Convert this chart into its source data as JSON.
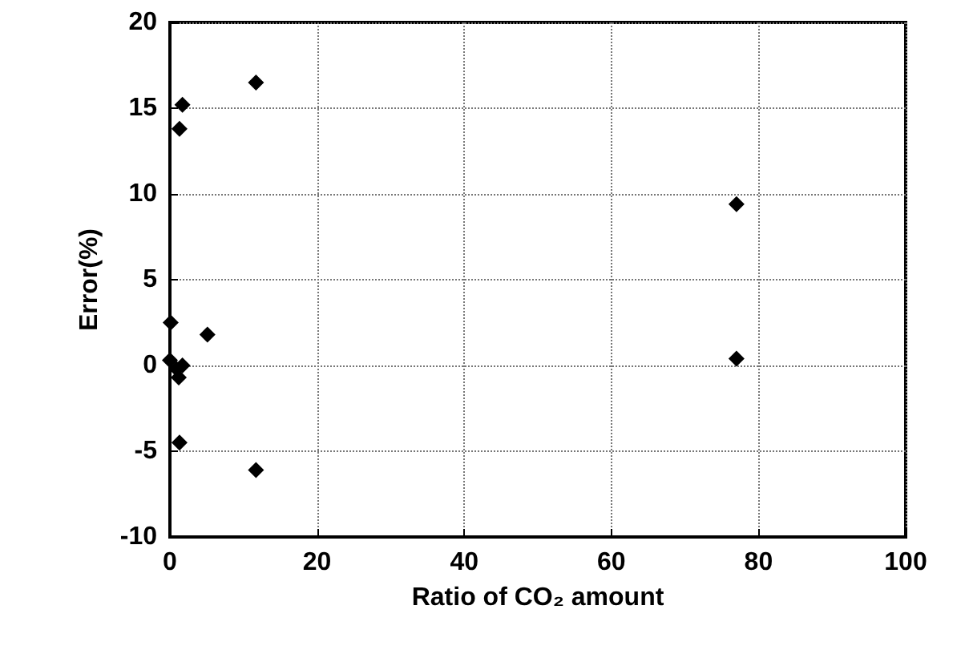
{
  "chart_data": {
    "type": "scatter",
    "xlabel": "Ratio of CO₂ amount",
    "ylabel": "Error(%)",
    "series": [
      {
        "color": "#000000",
        "x": [
          11.7,
          1.7,
          1.3,
          0.1,
          5.1,
          0,
          1.7,
          0.9,
          1.2,
          1.3,
          11.7,
          77,
          77
        ],
        "values": [
          16.5,
          15.2,
          13.8,
          2.5,
          1.8,
          0.3,
          0,
          -0.2,
          -0.7,
          -4.5,
          -6.1,
          9.4,
          0.4
        ]
      }
    ],
    "xlim": [
      0,
      100
    ],
    "xticks": [
      0,
      20,
      40,
      60,
      80,
      100
    ],
    "ylim": [
      -10,
      20
    ],
    "yticks": [
      -10,
      -5,
      0,
      5,
      10,
      15,
      20
    ],
    "grid": true,
    "marker": "diamond"
  }
}
